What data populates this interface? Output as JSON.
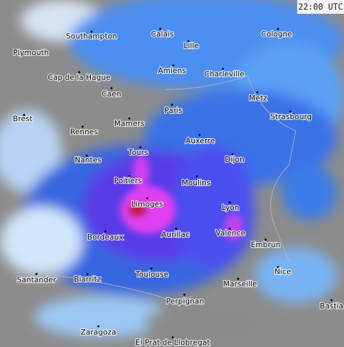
{
  "timestamp": "22:00 UTC",
  "cities": [
    "Southampton",
    "Plymouth",
    "Calais",
    "Lille",
    "Cologne",
    "Cap de la Hague",
    "Amiens",
    "Charleville",
    "Caen",
    "Metz",
    "Paris",
    "Brest",
    "Mamers",
    "Strasbourg",
    "Rennes",
    "Auxerre",
    "Tours",
    "Dijon",
    "Nantes",
    "Poitiers",
    "Moulins",
    "Limoges",
    "Lyon",
    "Valence",
    "Aurillac",
    "Bordeaux",
    "Embrun",
    "Nice",
    "Toulouse",
    "Santander",
    "Biarritz",
    "Marseille",
    "Perpignan",
    "Bastia",
    "Zaragoza",
    "El Prat de Llobregat"
  ]
}
